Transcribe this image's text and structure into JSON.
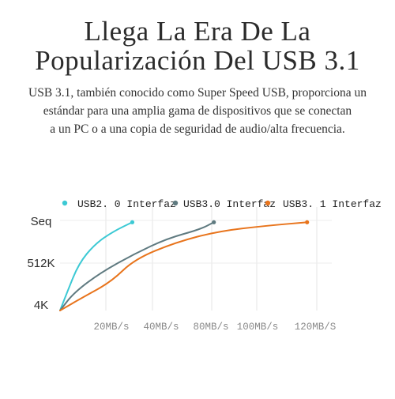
{
  "header": {
    "title_line1": "Llega La Era De La",
    "title_line2": "Popularización Del USB 3.1"
  },
  "description": {
    "line1": "USB 3.1, también conocido como Super Speed USB, proporciona un",
    "line2": "estándar para una amplia gama de dispositivos que se conectan",
    "line3": "a un PC o a una copia de seguridad de audio/alta frecuencia."
  },
  "chart_data": {
    "type": "line",
    "title": "",
    "xlabel": "",
    "ylabel": "",
    "x_ticks": [
      "20MB/s",
      "40MB/s",
      "80MB/s",
      "100MB/s",
      "120MB/S"
    ],
    "y_ticks": [
      "Seq",
      "512K",
      "4K"
    ],
    "grid": true,
    "legend_placement": "top",
    "series": [
      {
        "name": "USB2. 0  Interfaz",
        "color": "#3cc9d4",
        "points": [
          [
            0,
            0
          ],
          [
            0.15,
            0.2
          ],
          [
            0.4,
            0.52
          ],
          [
            0.75,
            0.74
          ],
          [
            1.15,
            0.88
          ],
          [
            1.55,
            0.98
          ]
        ]
      },
      {
        "name": "USB3.0 Interfaz",
        "color": "#5f7a80",
        "points": [
          [
            0,
            0
          ],
          [
            0.3,
            0.2
          ],
          [
            0.9,
            0.43
          ],
          [
            1.6,
            0.63
          ],
          [
            2.3,
            0.8
          ],
          [
            3.0,
            0.9
          ],
          [
            3.3,
            0.98
          ]
        ]
      },
      {
        "name": "USB3. 1  Interfaz",
        "color": "#e8741c",
        "points": [
          [
            0,
            0
          ],
          [
            0.5,
            0.15
          ],
          [
            1.1,
            0.32
          ],
          [
            1.6,
            0.57
          ],
          [
            2.5,
            0.76
          ],
          [
            3.4,
            0.88
          ],
          [
            4.4,
            0.94
          ],
          [
            5.3,
            0.98
          ]
        ]
      }
    ]
  }
}
